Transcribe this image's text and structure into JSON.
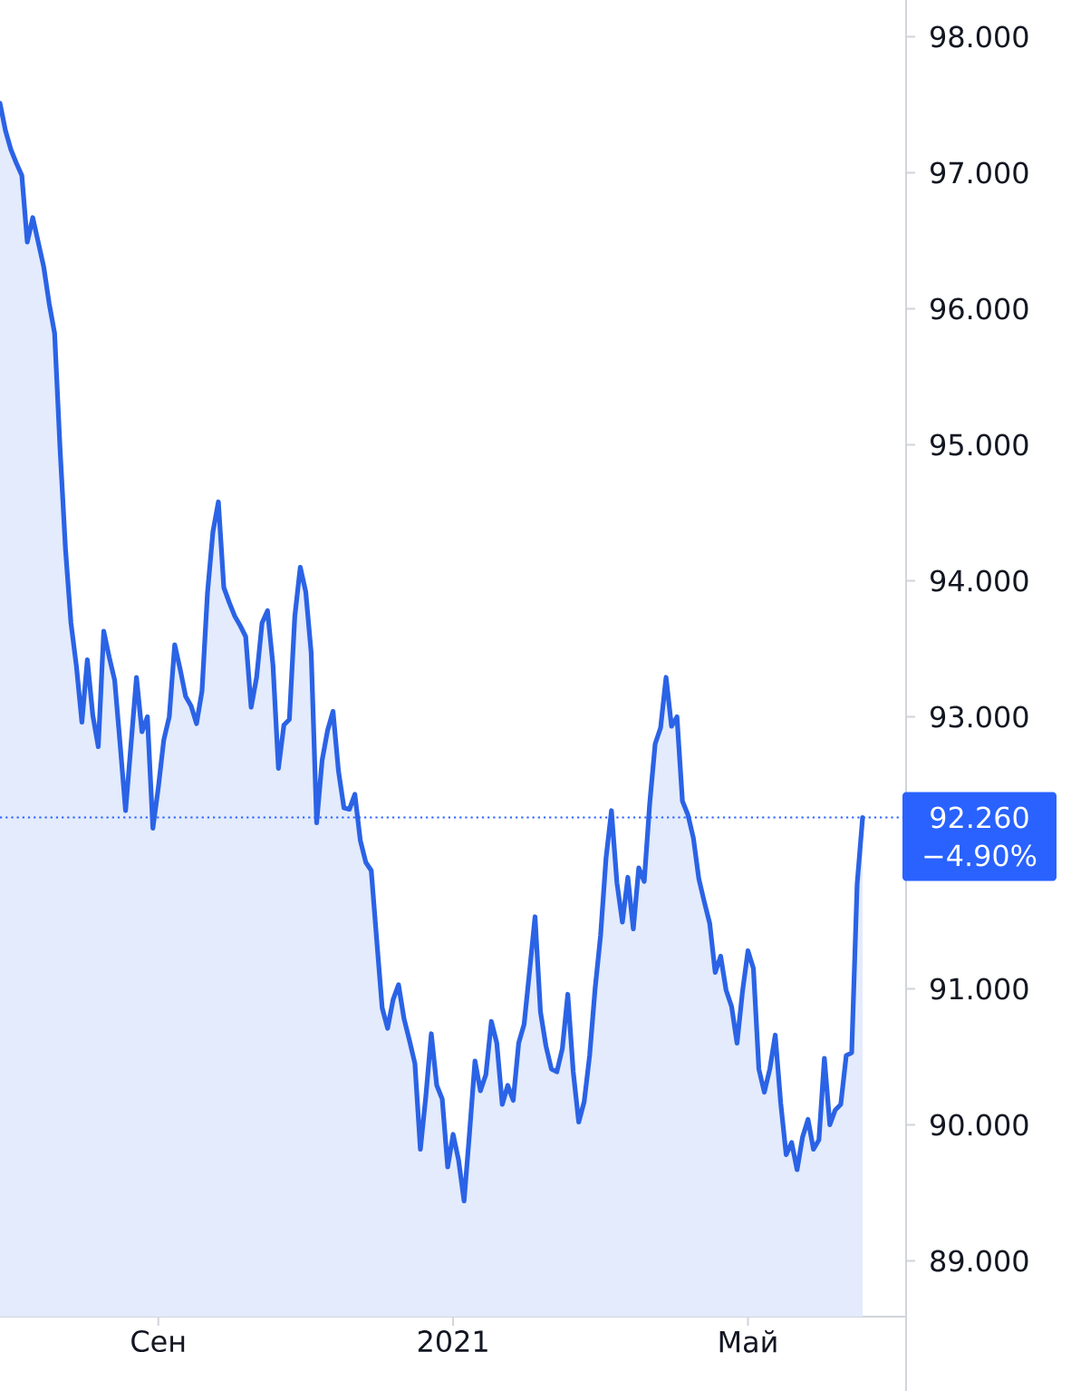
{
  "chart_data": {
    "type": "area",
    "color": "#2b63e6",
    "line_style": "solid",
    "categories": [
      null,
      null,
      null,
      null,
      null,
      null,
      null,
      null,
      null,
      null,
      null,
      null,
      null,
      null,
      null,
      null,
      null,
      null,
      null,
      null,
      null,
      null,
      null,
      null,
      null,
      null,
      null,
      null,
      null,
      "Сен",
      null,
      null,
      null,
      null,
      null,
      null,
      null,
      null,
      null,
      null,
      null,
      null,
      null,
      null,
      null,
      null,
      null,
      null,
      null,
      null,
      null,
      null,
      null,
      null,
      null,
      null,
      null,
      null,
      null,
      null,
      null,
      null,
      null,
      null,
      null,
      null,
      null,
      null,
      null,
      null,
      null,
      null,
      null,
      null,
      null,
      null,
      null,
      null,
      null,
      null,
      null,
      null,
      null,
      "2021",
      null,
      null,
      null,
      null,
      null,
      null,
      null,
      null,
      null,
      null,
      null,
      null,
      null,
      null,
      null,
      null,
      null,
      null,
      null,
      null,
      null,
      null,
      null,
      null,
      null,
      null,
      null,
      null,
      null,
      null,
      null,
      null,
      null,
      null,
      null,
      null,
      null,
      null,
      null,
      null,
      null,
      null,
      null,
      null,
      null,
      null,
      null,
      null,
      null,
      null,
      null,
      null,
      null,
      "Май",
      null,
      null,
      null,
      null,
      null,
      null,
      null,
      null,
      null,
      null,
      null,
      null,
      null,
      null,
      null,
      null,
      null,
      null,
      null,
      null,
      null
    ],
    "values": [
      97.51,
      97.31,
      97.17,
      97.07,
      96.98,
      96.49,
      96.67,
      96.49,
      96.31,
      96.04,
      95.82,
      94.97,
      94.23,
      93.69,
      93.37,
      92.96,
      93.42,
      93.01,
      92.78,
      93.63,
      93.44,
      93.27,
      92.8,
      92.31,
      92.8,
      93.29,
      92.89,
      93.0,
      92.18,
      92.48,
      92.83,
      93.0,
      93.53,
      93.35,
      93.15,
      93.08,
      92.95,
      93.19,
      93.91,
      94.36,
      94.58,
      93.95,
      93.84,
      93.74,
      93.67,
      93.59,
      93.07,
      93.29,
      93.69,
      93.78,
      93.38,
      92.62,
      92.94,
      92.98,
      93.74,
      94.1,
      93.92,
      93.47,
      92.22,
      92.68,
      92.9,
      93.04,
      92.6,
      92.33,
      92.32,
      92.43,
      92.09,
      91.93,
      91.87,
      91.36,
      90.86,
      90.71,
      90.92,
      91.03,
      90.78,
      90.62,
      90.45,
      89.82,
      90.21,
      90.67,
      90.29,
      90.19,
      89.69,
      89.93,
      89.74,
      89.44,
      89.94,
      90.47,
      90.25,
      90.37,
      90.76,
      90.6,
      90.15,
      90.29,
      90.18,
      90.6,
      90.74,
      91.13,
      91.53,
      90.83,
      90.58,
      90.41,
      90.39,
      90.56,
      90.96,
      90.39,
      90.02,
      90.17,
      90.51,
      91.0,
      91.39,
      91.96,
      92.31,
      91.78,
      91.49,
      91.82,
      91.44,
      91.89,
      91.79,
      92.36,
      92.8,
      92.92,
      93.29,
      92.93,
      93.0,
      92.38,
      92.28,
      92.11,
      91.81,
      91.64,
      91.48,
      91.12,
      91.24,
      90.99,
      90.87,
      90.6,
      90.98,
      91.28,
      91.15,
      90.41,
      90.24,
      90.41,
      90.66,
      90.16,
      89.78,
      89.87,
      89.67,
      89.91,
      90.04,
      89.82,
      89.89,
      90.49,
      90.0,
      90.11,
      90.15,
      90.51,
      90.53,
      91.77,
      92.26
    ],
    "ylim": [
      88.59,
      98.27
    ],
    "yticks": [
      {
        "value": 89,
        "label": "89.000"
      },
      {
        "value": 90,
        "label": "90.000"
      },
      {
        "value": 91,
        "label": "91.000"
      },
      {
        "value": 93,
        "label": "93.000"
      },
      {
        "value": 94,
        "label": "94.000"
      },
      {
        "value": 95,
        "label": "95.000"
      },
      {
        "value": 96,
        "label": "96.000"
      },
      {
        "value": 97,
        "label": "97.000"
      },
      {
        "value": 98,
        "label": "98.000"
      }
    ],
    "ref_lines": [
      {
        "axis": "y",
        "value": 92.26,
        "label": "92.260",
        "color": "#2962ff",
        "line_style": "dotted"
      }
    ],
    "annotations": [
      "−4.90%"
    ]
  }
}
